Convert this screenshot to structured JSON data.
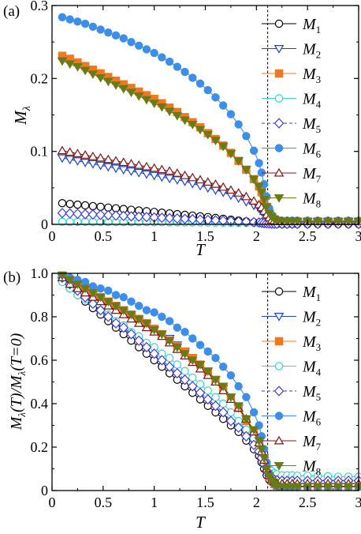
{
  "chart_data": [
    {
      "panel_label": "(a)",
      "type": "line",
      "xlabel": "T",
      "ylabel": "M",
      "ylabel_sub": "λ",
      "xlim": [
        0,
        3
      ],
      "ylim": [
        0,
        0.3
      ],
      "xticks": [
        "0",
        "0.5",
        "1",
        "1.5",
        "2",
        "2.5",
        "3"
      ],
      "yticks": [
        "0",
        "0.1",
        "0.2",
        "0.3"
      ],
      "ytick_values": [
        0,
        0.1,
        0.2,
        0.3
      ],
      "vline_x": 2.11,
      "grid": false,
      "legend_position": "top-right",
      "x": [
        0.1,
        0.175,
        0.25,
        0.325,
        0.4,
        0.475,
        0.55,
        0.625,
        0.7,
        0.775,
        0.85,
        0.925,
        1.0,
        1.075,
        1.15,
        1.225,
        1.3,
        1.375,
        1.45,
        1.525,
        1.6,
        1.675,
        1.75,
        1.825,
        1.9,
        1.975,
        2.025,
        2.05,
        2.075,
        2.1,
        2.125,
        2.15,
        2.175,
        2.2,
        2.25,
        2.3,
        2.35,
        2.4,
        2.5,
        2.6,
        2.7,
        2.8,
        2.9,
        3.0
      ],
      "series": [
        {
          "name": "M",
          "sub": "1",
          "color": "#000000",
          "marker": "circle-open",
          "linestyle": "solid",
          "values": [
            0.029,
            0.028,
            0.027,
            0.026,
            0.025,
            0.024,
            0.023,
            0.022,
            0.021,
            0.02,
            0.019,
            0.018,
            0.017,
            0.016,
            0.015,
            0.014,
            0.013,
            0.012,
            0.011,
            0.01,
            0.0088,
            0.0076,
            0.0064,
            0.0052,
            0.004,
            0.0028,
            0.002,
            0.0016,
            0.0012,
            0.0009,
            0.0007,
            0.0006,
            0.0005,
            0.0005,
            0.0004,
            0.0004,
            0.0004,
            0.0004,
            0.0004,
            0.0004,
            0.0004,
            0.0004,
            0.0004,
            0.0004
          ]
        },
        {
          "name": "M",
          "sub": "2",
          "color": "#1a45c8",
          "marker": "triangle-down-open",
          "linestyle": "solid",
          "values": [
            0.091,
            0.089,
            0.087,
            0.085,
            0.083,
            0.081,
            0.079,
            0.077,
            0.075,
            0.073,
            0.071,
            0.069,
            0.067,
            0.065,
            0.063,
            0.061,
            0.059,
            0.056,
            0.053,
            0.05,
            0.047,
            0.044,
            0.04,
            0.036,
            0.031,
            0.026,
            0.022,
            0.018,
            0.014,
            0.01,
            0.007,
            0.005,
            0.004,
            0.003,
            0.003,
            0.003,
            0.003,
            0.003,
            0.003,
            0.003,
            0.003,
            0.003,
            0.003,
            0.003
          ]
        },
        {
          "name": "M",
          "sub": "3",
          "color": "#f07820",
          "marker": "square-filled",
          "linestyle": "solid",
          "values": [
            0.231,
            0.227,
            0.222,
            0.217,
            0.212,
            0.207,
            0.202,
            0.197,
            0.192,
            0.187,
            0.182,
            0.177,
            0.172,
            0.166,
            0.16,
            0.154,
            0.147,
            0.14,
            0.133,
            0.125,
            0.117,
            0.108,
            0.098,
            0.087,
            0.075,
            0.062,
            0.052,
            0.044,
            0.034,
            0.024,
            0.015,
            0.01,
            0.007,
            0.005,
            0.004,
            0.004,
            0.004,
            0.004,
            0.004,
            0.004,
            0.004,
            0.004,
            0.004,
            0.004
          ]
        },
        {
          "name": "M",
          "sub": "4",
          "color": "#40d0c8",
          "marker": "circle-open",
          "linestyle": "solid",
          "values": [
            0.0035,
            0.0035,
            0.0034,
            0.0034,
            0.0033,
            0.0033,
            0.0032,
            0.0032,
            0.0031,
            0.0031,
            0.003,
            0.003,
            0.0029,
            0.0029,
            0.0028,
            0.0028,
            0.0027,
            0.0026,
            0.0025,
            0.0024,
            0.0023,
            0.0022,
            0.0021,
            0.002,
            0.0019,
            0.0018,
            0.0017,
            0.0017,
            0.0016,
            0.0016,
            0.0016,
            0.0016,
            0.0016,
            0.0016,
            0.0016,
            0.0016,
            0.0016,
            0.0016,
            0.0016,
            0.0016,
            0.0016,
            0.0016,
            0.0016,
            0.0016
          ]
        },
        {
          "name": "M",
          "sub": "5",
          "color": "#3a3ad8",
          "marker": "diamond-open",
          "linestyle": "dashed",
          "values": [
            0.0155,
            0.015,
            0.0145,
            0.014,
            0.0135,
            0.013,
            0.0125,
            0.012,
            0.0115,
            0.011,
            0.0105,
            0.01,
            0.0095,
            0.009,
            0.0085,
            0.008,
            0.0075,
            0.007,
            0.0065,
            0.006,
            0.0055,
            0.005,
            0.0045,
            0.004,
            0.0035,
            0.003,
            0.0026,
            0.0022,
            0.0018,
            0.0015,
            0.0012,
            0.001,
            0.0009,
            0.0008,
            0.0007,
            0.0007,
            0.0007,
            0.0007,
            0.0007,
            0.0007,
            0.0007,
            0.0007,
            0.0007,
            0.0007
          ]
        },
        {
          "name": "M",
          "sub": "6",
          "color": "#3d8ee8",
          "marker": "circle-filled",
          "linestyle": "solid",
          "values": [
            0.284,
            0.281,
            0.278,
            0.275,
            0.271,
            0.267,
            0.263,
            0.259,
            0.255,
            0.25,
            0.245,
            0.24,
            0.235,
            0.229,
            0.223,
            0.216,
            0.209,
            0.201,
            0.193,
            0.184,
            0.174,
            0.163,
            0.151,
            0.137,
            0.121,
            0.101,
            0.084,
            0.071,
            0.055,
            0.038,
            0.022,
            0.013,
            0.008,
            0.006,
            0.005,
            0.005,
            0.005,
            0.005,
            0.005,
            0.005,
            0.005,
            0.005,
            0.005,
            0.005
          ]
        },
        {
          "name": "M",
          "sub": "7",
          "color": "#7a1818",
          "marker": "triangle-up-open",
          "linestyle": "solid",
          "values": [
            0.101,
            0.099,
            0.097,
            0.095,
            0.093,
            0.091,
            0.089,
            0.087,
            0.085,
            0.083,
            0.081,
            0.079,
            0.077,
            0.075,
            0.073,
            0.07,
            0.067,
            0.064,
            0.061,
            0.058,
            0.055,
            0.051,
            0.047,
            0.043,
            0.038,
            0.032,
            0.027,
            0.023,
            0.018,
            0.013,
            0.009,
            0.006,
            0.005,
            0.004,
            0.004,
            0.004,
            0.004,
            0.004,
            0.004,
            0.004,
            0.004,
            0.004,
            0.004,
            0.004
          ]
        },
        {
          "name": "M",
          "sub": "8",
          "color": "#6b7a14",
          "marker": "triangle-down-filled",
          "linestyle": "solid",
          "values": [
            0.224,
            0.22,
            0.216,
            0.211,
            0.206,
            0.201,
            0.196,
            0.191,
            0.186,
            0.181,
            0.176,
            0.171,
            0.166,
            0.161,
            0.155,
            0.149,
            0.143,
            0.137,
            0.13,
            0.123,
            0.115,
            0.107,
            0.097,
            0.087,
            0.075,
            0.062,
            0.052,
            0.044,
            0.034,
            0.024,
            0.015,
            0.01,
            0.007,
            0.005,
            0.004,
            0.004,
            0.004,
            0.004,
            0.004,
            0.004,
            0.004,
            0.004,
            0.004,
            0.004
          ]
        }
      ]
    },
    {
      "panel_label": "(b)",
      "type": "line",
      "xlabel": "T",
      "ylabel": "M",
      "ylabel_sub": "λ",
      "ylabel_mid": "(T)/M",
      "ylabel_sub2": "λ",
      "ylabel_end": "(T=0)",
      "xlim": [
        0,
        3
      ],
      "ylim": [
        0,
        1.0
      ],
      "xticks": [
        "0",
        "0.5",
        "1",
        "1.5",
        "2",
        "2.5",
        "3"
      ],
      "yticks": [
        "0",
        "0.2",
        "0.4",
        "0.6",
        "0.8",
        "1.0"
      ],
      "ytick_values": [
        0,
        0.2,
        0.4,
        0.6,
        0.8,
        1.0
      ],
      "vline_x": 2.11,
      "grid": false,
      "legend_position": "top-right",
      "x": [
        0.1,
        0.175,
        0.25,
        0.325,
        0.4,
        0.475,
        0.55,
        0.625,
        0.7,
        0.775,
        0.85,
        0.925,
        1.0,
        1.075,
        1.15,
        1.225,
        1.3,
        1.375,
        1.45,
        1.525,
        1.6,
        1.675,
        1.75,
        1.825,
        1.9,
        1.975,
        2.025,
        2.05,
        2.075,
        2.1,
        2.125,
        2.15,
        2.175,
        2.2,
        2.25,
        2.3,
        2.35,
        2.4,
        2.5,
        2.6,
        2.7,
        2.8,
        2.9,
        3.0
      ],
      "series": [
        {
          "name": "M",
          "sub": "1",
          "color": "#000000",
          "marker": "circle-open",
          "linestyle": "solid",
          "values": [
            0.97,
            0.93,
            0.9,
            0.87,
            0.84,
            0.81,
            0.78,
            0.75,
            0.72,
            0.69,
            0.66,
            0.63,
            0.6,
            0.57,
            0.54,
            0.51,
            0.48,
            0.45,
            0.42,
            0.39,
            0.36,
            0.33,
            0.3,
            0.27,
            0.23,
            0.19,
            0.16,
            0.13,
            0.1,
            0.07,
            0.05,
            0.04,
            0.03,
            0.025,
            0.022,
            0.02,
            0.02,
            0.02,
            0.02,
            0.02,
            0.02,
            0.02,
            0.02,
            0.02
          ]
        },
        {
          "name": "M",
          "sub": "2",
          "color": "#1a45c8",
          "marker": "triangle-down-open",
          "linestyle": "solid",
          "values": [
            0.98,
            0.96,
            0.94,
            0.92,
            0.9,
            0.88,
            0.86,
            0.84,
            0.82,
            0.8,
            0.78,
            0.76,
            0.74,
            0.72,
            0.7,
            0.67,
            0.64,
            0.61,
            0.58,
            0.55,
            0.51,
            0.47,
            0.43,
            0.38,
            0.33,
            0.27,
            0.22,
            0.18,
            0.14,
            0.1,
            0.07,
            0.05,
            0.04,
            0.035,
            0.033,
            0.033,
            0.033,
            0.033,
            0.033,
            0.033,
            0.033,
            0.033,
            0.033,
            0.033
          ]
        },
        {
          "name": "M",
          "sub": "3",
          "color": "#f07820",
          "marker": "square-filled",
          "linestyle": "solid",
          "values": [
            0.99,
            0.97,
            0.95,
            0.93,
            0.91,
            0.89,
            0.87,
            0.85,
            0.83,
            0.81,
            0.79,
            0.77,
            0.745,
            0.72,
            0.69,
            0.665,
            0.64,
            0.61,
            0.58,
            0.545,
            0.51,
            0.47,
            0.425,
            0.38,
            0.32,
            0.27,
            0.22,
            0.19,
            0.15,
            0.1,
            0.065,
            0.045,
            0.03,
            0.022,
            0.018,
            0.018,
            0.018,
            0.018,
            0.018,
            0.018,
            0.018,
            0.018,
            0.018,
            0.018
          ]
        },
        {
          "name": "M",
          "sub": "4",
          "color": "#40d0c8",
          "marker": "circle-open",
          "linestyle": "solid",
          "values": [
            0.96,
            0.93,
            0.9,
            0.88,
            0.86,
            0.83,
            0.81,
            0.78,
            0.76,
            0.73,
            0.71,
            0.68,
            0.66,
            0.63,
            0.61,
            0.58,
            0.55,
            0.52,
            0.49,
            0.46,
            0.43,
            0.4,
            0.36,
            0.32,
            0.28,
            0.24,
            0.2,
            0.17,
            0.14,
            0.12,
            0.1,
            0.09,
            0.08,
            0.075,
            0.07,
            0.07,
            0.07,
            0.068,
            0.068,
            0.066,
            0.066,
            0.064,
            0.064,
            0.064
          ]
        },
        {
          "name": "M",
          "sub": "5",
          "color": "#3a3ad8",
          "marker": "diamond-open",
          "linestyle": "dashed",
          "values": [
            0.98,
            0.95,
            0.92,
            0.89,
            0.86,
            0.83,
            0.8,
            0.77,
            0.75,
            0.72,
            0.69,
            0.66,
            0.63,
            0.6,
            0.57,
            0.54,
            0.51,
            0.48,
            0.45,
            0.42,
            0.39,
            0.36,
            0.32,
            0.29,
            0.25,
            0.21,
            0.18,
            0.15,
            0.12,
            0.09,
            0.07,
            0.06,
            0.05,
            0.048,
            0.045,
            0.045,
            0.045,
            0.045,
            0.045,
            0.045,
            0.045,
            0.045,
            0.045,
            0.045
          ]
        },
        {
          "name": "M",
          "sub": "6",
          "color": "#3d8ee8",
          "marker": "circle-filled",
          "linestyle": "solid",
          "values": [
            0.99,
            0.98,
            0.97,
            0.96,
            0.94,
            0.93,
            0.92,
            0.9,
            0.89,
            0.87,
            0.85,
            0.83,
            0.82,
            0.8,
            0.78,
            0.75,
            0.73,
            0.7,
            0.67,
            0.64,
            0.61,
            0.57,
            0.53,
            0.48,
            0.43,
            0.36,
            0.3,
            0.25,
            0.19,
            0.13,
            0.08,
            0.05,
            0.03,
            0.022,
            0.018,
            0.018,
            0.018,
            0.018,
            0.018,
            0.018,
            0.018,
            0.018,
            0.018,
            0.018
          ]
        },
        {
          "name": "M",
          "sub": "7",
          "color": "#7a1818",
          "marker": "triangle-up-open",
          "linestyle": "solid",
          "values": [
            0.98,
            0.95,
            0.93,
            0.91,
            0.89,
            0.87,
            0.85,
            0.83,
            0.81,
            0.79,
            0.77,
            0.75,
            0.73,
            0.71,
            0.68,
            0.65,
            0.62,
            0.59,
            0.56,
            0.53,
            0.5,
            0.46,
            0.42,
            0.38,
            0.33,
            0.27,
            0.22,
            0.18,
            0.14,
            0.1,
            0.07,
            0.05,
            0.04,
            0.035,
            0.032,
            0.032,
            0.032,
            0.032,
            0.032,
            0.032,
            0.032,
            0.032,
            0.032,
            0.032
          ]
        },
        {
          "name": "M",
          "sub": "8",
          "color": "#6b7a14",
          "marker": "triangle-down-filled",
          "linestyle": "solid",
          "values": [
            0.99,
            0.97,
            0.95,
            0.93,
            0.91,
            0.89,
            0.87,
            0.85,
            0.83,
            0.81,
            0.79,
            0.77,
            0.74,
            0.72,
            0.69,
            0.66,
            0.63,
            0.6,
            0.58,
            0.55,
            0.51,
            0.48,
            0.43,
            0.39,
            0.33,
            0.28,
            0.23,
            0.19,
            0.15,
            0.1,
            0.065,
            0.045,
            0.03,
            0.022,
            0.018,
            0.018,
            0.018,
            0.018,
            0.018,
            0.018,
            0.018,
            0.018,
            0.018,
            0.018
          ]
        }
      ]
    }
  ]
}
